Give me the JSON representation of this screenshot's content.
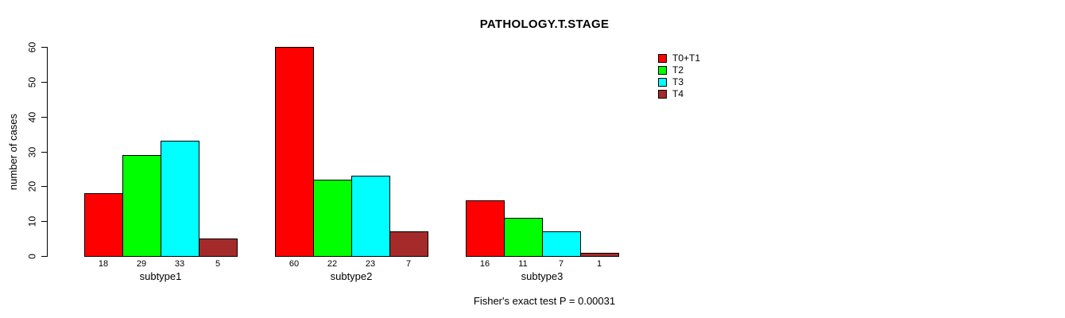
{
  "header": {
    "title": "PATHOLOGY.T.STAGE"
  },
  "footer": {
    "annotation": "Fisher's exact test P = 0.00031"
  },
  "chart_data": {
    "type": "bar",
    "title": "PATHOLOGY.T.STAGE",
    "xlabel": "",
    "ylabel": "number of cases",
    "ylim": [
      0,
      60
    ],
    "yticks": [
      0,
      10,
      20,
      30,
      40,
      50,
      60
    ],
    "grid": false,
    "legend_position": "right",
    "bar_value_labels_shown": true,
    "categories": [
      "subtype1",
      "subtype2",
      "subtype3"
    ],
    "series": [
      {
        "name": "T0+T1",
        "color": "#FF0000",
        "values": [
          18,
          60,
          16
        ]
      },
      {
        "name": "T2",
        "color": "#00FF00",
        "values": [
          29,
          22,
          11
        ]
      },
      {
        "name": "T3",
        "color": "#00FFFF",
        "values": [
          33,
          23,
          7
        ]
      },
      {
        "name": "T4",
        "color": "#A52A2A",
        "values": [
          5,
          7,
          1
        ]
      }
    ],
    "annotation": "Fisher's exact test P = 0.00031"
  }
}
